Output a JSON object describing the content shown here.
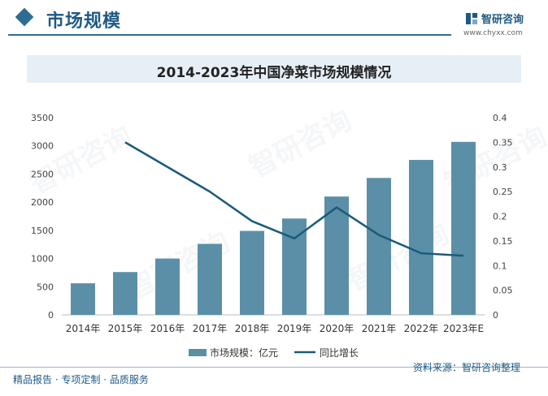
{
  "header": {
    "section_title": "市场规模",
    "brand_name": "智研咨询",
    "brand_url": "www.chyxx.com"
  },
  "footer": {
    "left_text": "精品报告 · 专项定制 · 品质服务",
    "source_text": "资料来源：智研咨询整理"
  },
  "watermark": "智研咨询",
  "colors": {
    "accent": "#1f5a86",
    "bar": "#5b8fa8",
    "line": "#1b5a7a"
  },
  "chart_data": {
    "type": "bar",
    "title": "2014-2023年中国净菜市场规模情况",
    "categories": [
      "2014年",
      "2015年",
      "2016年",
      "2017年",
      "2018年",
      "2019年",
      "2020年",
      "2021年",
      "2022年",
      "2023年E"
    ],
    "series": [
      {
        "name": "市场规模：亿元",
        "type": "bar",
        "axis": "left",
        "values": [
          560,
          760,
          1000,
          1260,
          1490,
          1710,
          2100,
          2430,
          2750,
          3070
        ]
      },
      {
        "name": "同比增长",
        "type": "line",
        "axis": "right",
        "values": [
          null,
          0.35,
          0.3,
          0.25,
          0.19,
          0.155,
          0.218,
          0.162,
          0.125,
          0.12
        ]
      }
    ],
    "ylim_left": [
      0,
      3500
    ],
    "yticks_left": [
      0,
      500,
      1000,
      1500,
      2000,
      2500,
      3000,
      3500
    ],
    "ylim_right": [
      0,
      0.4
    ],
    "yticks_right": [
      "0",
      "0.05",
      "0.1",
      "0.15",
      "0.2",
      "0.25",
      "0.3",
      "0.35",
      "0.4"
    ],
    "legend_position": "bottom",
    "grid": false
  }
}
